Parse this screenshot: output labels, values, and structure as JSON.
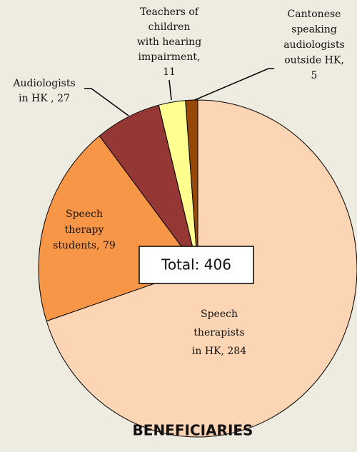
{
  "chart_data": {
    "type": "pie",
    "title": "BENEFICIARIES",
    "annotation": "Total: 406",
    "values": [
      284,
      79,
      27,
      11,
      5
    ],
    "value_labels": [
      [
        "Speech",
        "therapists",
        "in HK, 284"
      ],
      [
        "Speech",
        "therapy",
        "students, 79"
      ],
      [
        "Audiologists",
        "in HK , 27"
      ],
      [
        "Teachers of",
        "children",
        "with hearing",
        "impairment,",
        "11"
      ],
      [
        "Cantonese",
        "speaking",
        "audiologists",
        "outside HK,",
        "5"
      ]
    ],
    "colors": [
      "#fcd5b4",
      "#f79646",
      "#953735",
      "#ffff8f",
      "#974806"
    ]
  }
}
